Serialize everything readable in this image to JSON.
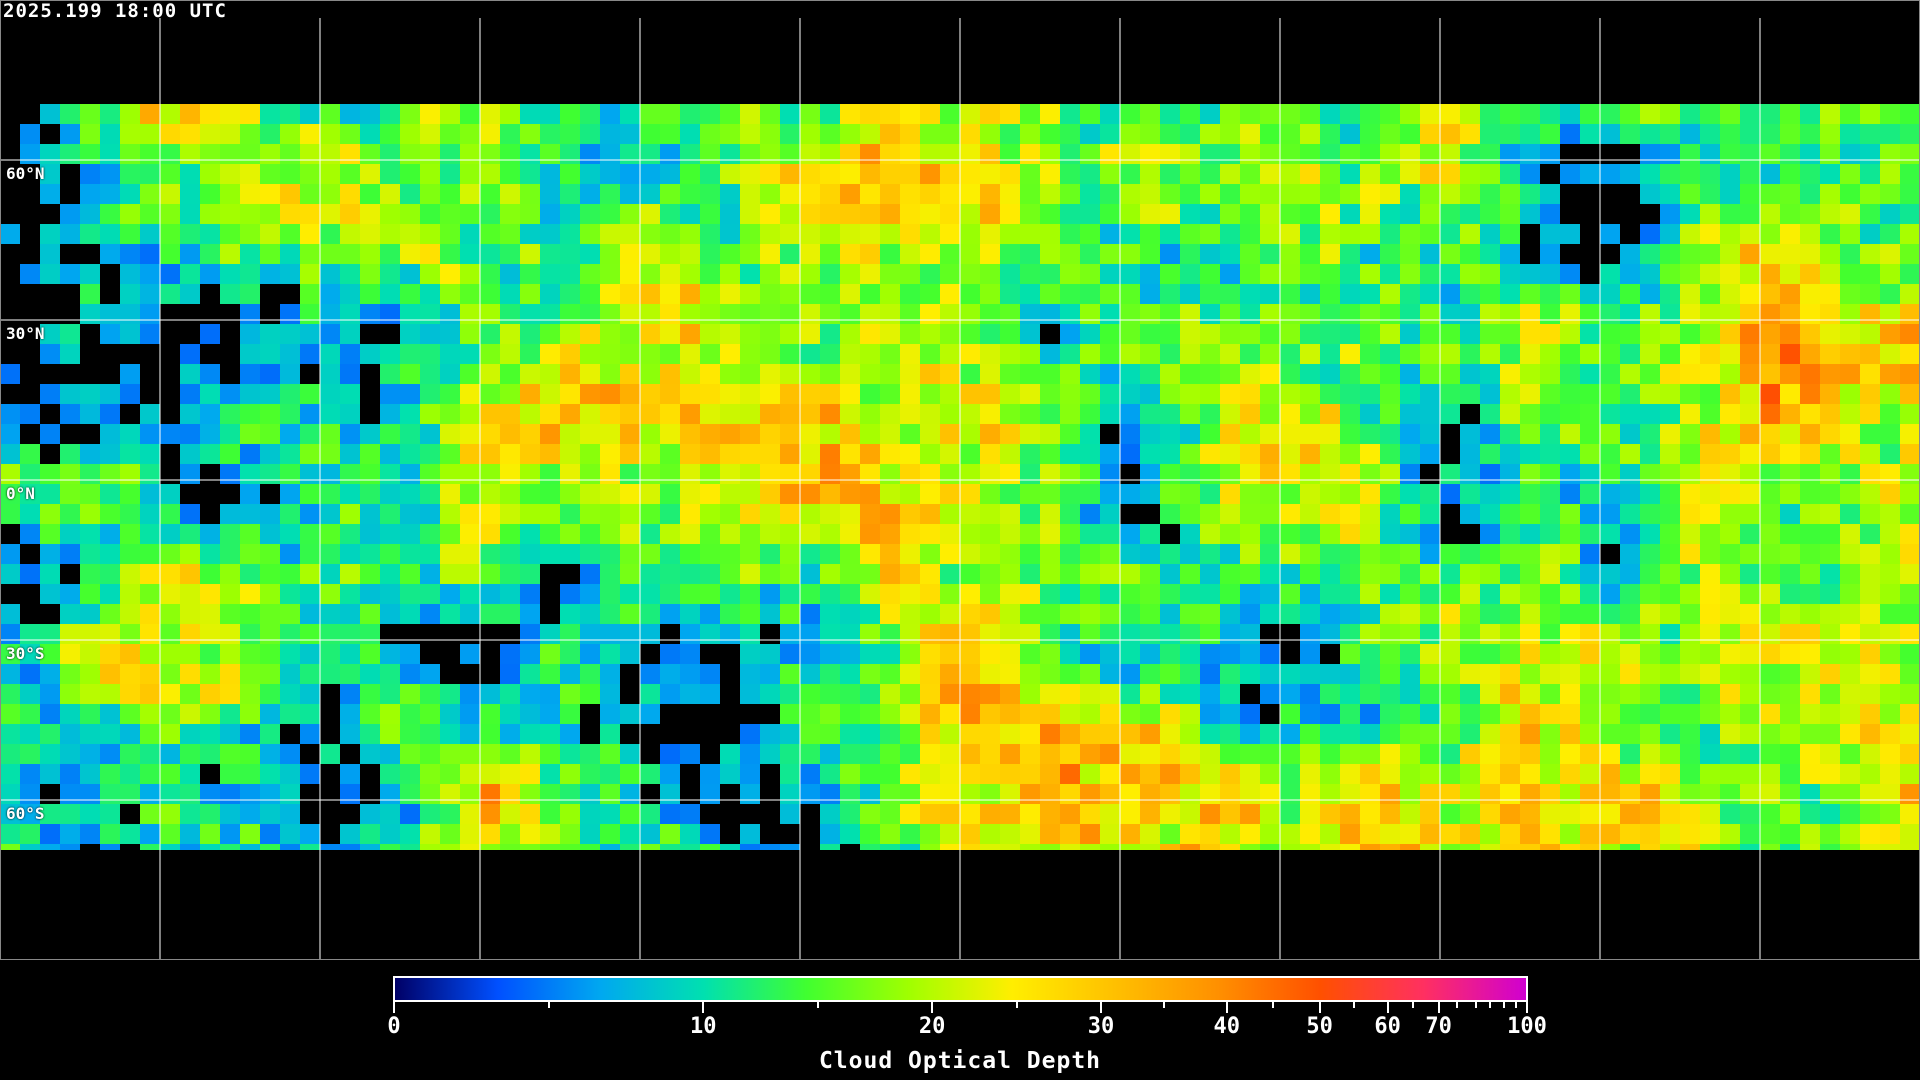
{
  "header": {
    "timestamp": "2025.199 18:00 UTC"
  },
  "map": {
    "projection": "equirectangular",
    "gridline_longitudes": [
      -150,
      -120,
      -90,
      -60,
      -30,
      0,
      30,
      60,
      90,
      120,
      150
    ],
    "gridline_latitudes": [
      60,
      30,
      0,
      -30,
      -60
    ],
    "lat_labels": [
      "60°N",
      "30°N",
      "0°N",
      "30°S",
      "60°S"
    ],
    "gridline_color": "#ffffff",
    "coastline_color": "#ffffff",
    "no_data_color": "#000000"
  },
  "colorbar": {
    "title": "Cloud Optical Depth",
    "range": [
      0,
      100
    ],
    "labels": [
      "0",
      "10",
      "20",
      "30",
      "40",
      "50",
      "60",
      "70",
      "100"
    ],
    "colors": [
      "#000066",
      "#0050ff",
      "#00a8f0",
      "#00e0b0",
      "#40ff30",
      "#a0ff00",
      "#ffee00",
      "#ffc000",
      "#ff9000",
      "#ff5000",
      "#ff3060",
      "#d000d0"
    ]
  }
}
